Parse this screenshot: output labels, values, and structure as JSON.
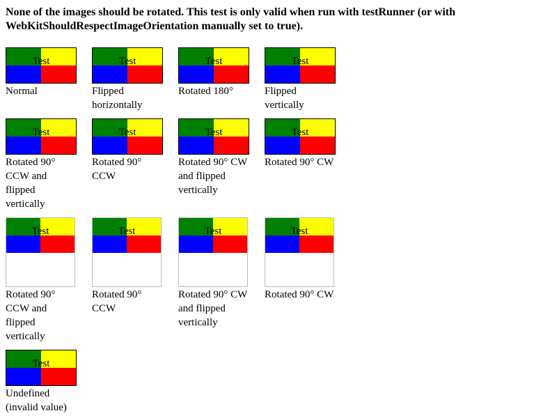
{
  "heading": "None of the images should be rotated. This test is only valid when run with testRunner (or with WebKitShouldRespectImageOrientation manually set to true).",
  "image_text": "Test",
  "colors": {
    "top_left": "#008000",
    "top_right": "#ffff00",
    "bottom_left": "#0000ff",
    "bottom_right": "#ff0000"
  },
  "rows": [
    {
      "tall": false,
      "cells": [
        {
          "caption": "Normal"
        },
        {
          "caption": "Flipped horizontally"
        },
        {
          "caption": "Rotated 180°"
        },
        {
          "caption": "Flipped vertically"
        }
      ]
    },
    {
      "tall": false,
      "cells": [
        {
          "caption": "Rotated 90° CCW and flipped vertically"
        },
        {
          "caption": "Rotated 90° CCW"
        },
        {
          "caption": "Rotated 90° CW and flipped vertically"
        },
        {
          "caption": "Rotated 90° CW"
        }
      ]
    },
    {
      "tall": true,
      "cells": [
        {
          "caption": "Rotated 90° CCW and flipped vertically"
        },
        {
          "caption": "Rotated 90° CCW"
        },
        {
          "caption": "Rotated 90° CW and flipped vertically"
        },
        {
          "caption": "Rotated 90° CW"
        }
      ]
    },
    {
      "tall": false,
      "cells": [
        {
          "caption": "Undefined (invalid value)"
        }
      ]
    }
  ]
}
